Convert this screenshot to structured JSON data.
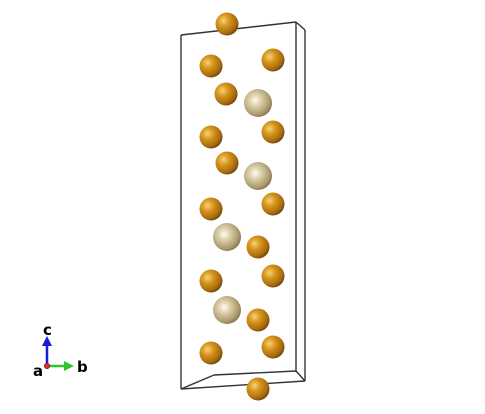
{
  "structure": {
    "atom_colors": {
      "gold": "#c88a1c",
      "gold_dark": "#6e4606",
      "gold_light": "#f6d27a",
      "tan": "#b5a57d",
      "tan_dark": "#6b5e3f",
      "tan_light": "#f2ead2"
    },
    "cell_edge_color": "#333333"
  },
  "axes": {
    "a": "a",
    "b": "b",
    "c": "c",
    "a_color": "#e03030",
    "b_color": "#2ec82e",
    "c_color": "#1a1adc"
  }
}
